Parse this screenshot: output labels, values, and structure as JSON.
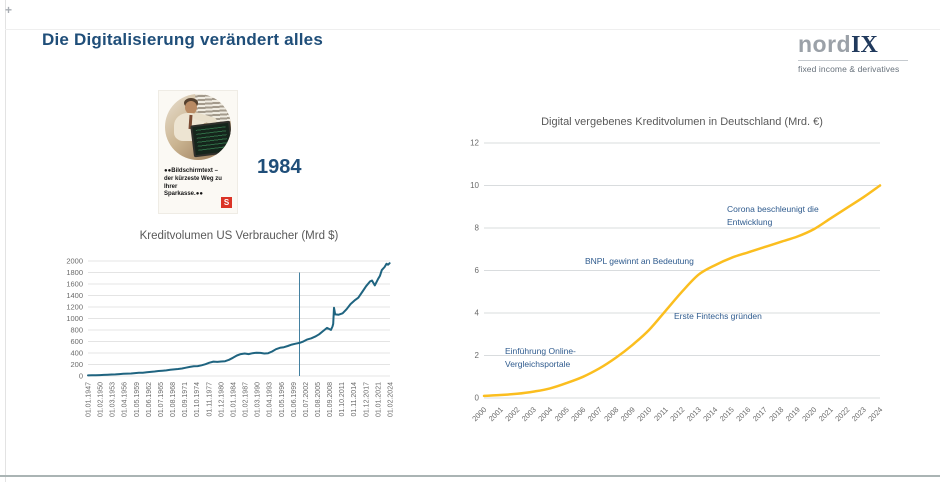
{
  "slide": {
    "title": "Die Digitalisierung verändert alles",
    "crosshair": "+",
    "year_label": "1984",
    "logo": {
      "word_gray": "nord",
      "word_navy": "IX",
      "tagline": "fixed income & derivatives"
    },
    "ad": {
      "caption": "●●Bildschirmtext –\nder kürzeste Weg zu Ihrer\nSparkasse.●●",
      "logo_letter": "S"
    },
    "colors": {
      "title_navy": "#1F4E79",
      "annotation_blue": "#2F5B8E",
      "sparkasse_red": "#DB3326"
    }
  },
  "chart_data": [
    {
      "type": "line",
      "title": "Kreditvolumen US Verbraucher (Mrd $)",
      "xlabel": "",
      "ylabel": "",
      "ylim": [
        0,
        2000
      ],
      "yticks": [
        0,
        200,
        400,
        600,
        800,
        1000,
        1200,
        1400,
        1600,
        1800,
        2000
      ],
      "x_range": [
        1947,
        2024.09
      ],
      "xtick_labels": [
        "01.01.1947",
        "01.02.1950",
        "01.03.1953",
        "01.04.1956",
        "01.05.1959",
        "01.06.1962",
        "01.07.1965",
        "01.08.1968",
        "01.09.1971",
        "01.10.1974",
        "01.11.1977",
        "01.12.1980",
        "01.01.1984",
        "01.02.1987",
        "01.03.1990",
        "01.04.1993",
        "01.05.1996",
        "01.06.1999",
        "01.07.2002",
        "01.08.2005",
        "01.09.2008",
        "01.10.2011",
        "01.11.2014",
        "01.12.2017",
        "01.01.2021",
        "01.02.2024"
      ],
      "grid": true,
      "legend": false,
      "line_color": "#1F6480",
      "grid_color": "#E4E4E4",
      "tick_color": "#6B6B6B",
      "marker_line": {
        "year": 2001,
        "top_value": 1800,
        "color": "#4380A0"
      },
      "series": [
        {
          "name": "Kreditvolumen US Verbraucher",
          "points": [
            [
              1947,
              10
            ],
            [
              1948,
              12
            ],
            [
              1949,
              13
            ],
            [
              1950,
              16
            ],
            [
              1951,
              19
            ],
            [
              1952,
              22
            ],
            [
              1953,
              26
            ],
            [
              1954,
              28
            ],
            [
              1955,
              33
            ],
            [
              1956,
              38
            ],
            [
              1957,
              41
            ],
            [
              1958,
              44
            ],
            [
              1959,
              50
            ],
            [
              1960,
              55
            ],
            [
              1961,
              58
            ],
            [
              1962,
              64
            ],
            [
              1963,
              71
            ],
            [
              1964,
              79
            ],
            [
              1965,
              87
            ],
            [
              1966,
              93
            ],
            [
              1967,
              98
            ],
            [
              1968,
              107
            ],
            [
              1969,
              115
            ],
            [
              1970,
              121
            ],
            [
              1971,
              131
            ],
            [
              1972,
              144
            ],
            [
              1973,
              159
            ],
            [
              1974,
              169
            ],
            [
              1975,
              173
            ],
            [
              1976,
              186
            ],
            [
              1977,
              206
            ],
            [
              1978,
              231
            ],
            [
              1979,
              251
            ],
            [
              1980,
              246
            ],
            [
              1981,
              252
            ],
            [
              1982,
              257
            ],
            [
              1983,
              282
            ],
            [
              1984,
              317
            ],
            [
              1985,
              357
            ],
            [
              1986,
              381
            ],
            [
              1987,
              391
            ],
            [
              1988,
              381
            ],
            [
              1989,
              396
            ],
            [
              1990,
              406
            ],
            [
              1991,
              401
            ],
            [
              1992,
              391
            ],
            [
              1993,
              396
            ],
            [
              1994,
              426
            ],
            [
              1995,
              466
            ],
            [
              1996,
              491
            ],
            [
              1997,
              501
            ],
            [
              1998,
              521
            ],
            [
              1999,
              546
            ],
            [
              2000,
              561
            ],
            [
              2001,
              576
            ],
            [
              2002,
              601
            ],
            [
              2003,
              636
            ],
            [
              2004,
              656
            ],
            [
              2005,
              686
            ],
            [
              2006,
              726
            ],
            [
              2007,
              781
            ],
            [
              2008,
              836
            ],
            [
              2009,
              801
            ],
            [
              2009.4,
              861
            ],
            [
              2009.6,
              906
            ],
            [
              2009.8,
              1186
            ],
            [
              2010.1,
              1071
            ],
            [
              2011,
              1066
            ],
            [
              2012,
              1091
            ],
            [
              2013,
              1161
            ],
            [
              2014,
              1251
            ],
            [
              2015,
              1311
            ],
            [
              2016,
              1361
            ],
            [
              2017,
              1461
            ],
            [
              2018,
              1561
            ],
            [
              2019,
              1646
            ],
            [
              2019.5,
              1661
            ],
            [
              2020.2,
              1576
            ],
            [
              2021,
              1681
            ],
            [
              2021.5,
              1741
            ],
            [
              2022,
              1841
            ],
            [
              2022.7,
              1896
            ],
            [
              2023.2,
              1951
            ],
            [
              2023.6,
              1936
            ],
            [
              2024,
              1961
            ]
          ]
        }
      ]
    },
    {
      "type": "line",
      "title": "Digital vergebenes Kreditvolumen in Deutschland (Mrd. €)",
      "xlabel": "",
      "ylabel": "",
      "ylim": [
        0,
        12
      ],
      "yticks": [
        0,
        2,
        4,
        6,
        8,
        10,
        12
      ],
      "x_range": [
        2000,
        2024
      ],
      "xtick_labels": [
        "2000",
        "2001",
        "2002",
        "2003",
        "2004",
        "2005",
        "2006",
        "2007",
        "2008",
        "2009",
        "2010",
        "2011",
        "2012",
        "2013",
        "2014",
        "2015",
        "2016",
        "2017",
        "2018",
        "2019",
        "2020",
        "2021",
        "2022",
        "2023",
        "2024"
      ],
      "grid": true,
      "legend": false,
      "line_color": "#FBBE1F",
      "grid_color": "#D9DCDE",
      "tick_color": "#6B6B6B",
      "series": [
        {
          "name": "Digital vergebenes Kreditvolumen",
          "points": [
            [
              2000,
              0.1
            ],
            [
              2001,
              0.14
            ],
            [
              2002,
              0.2
            ],
            [
              2003,
              0.3
            ],
            [
              2004,
              0.45
            ],
            [
              2005,
              0.7
            ],
            [
              2006,
              1.0
            ],
            [
              2007,
              1.4
            ],
            [
              2008,
              1.9
            ],
            [
              2009,
              2.5
            ],
            [
              2010,
              3.2
            ],
            [
              2011,
              4.1
            ],
            [
              2012,
              5.0
            ],
            [
              2013,
              5.8
            ],
            [
              2014,
              6.25
            ],
            [
              2015,
              6.6
            ],
            [
              2016,
              6.85
            ],
            [
              2017,
              7.1
            ],
            [
              2018,
              7.35
            ],
            [
              2019,
              7.6
            ],
            [
              2020,
              7.95
            ],
            [
              2021,
              8.45
            ],
            [
              2022,
              8.95
            ],
            [
              2023,
              9.45
            ],
            [
              2024,
              10.0
            ]
          ]
        }
      ],
      "annotations": [
        {
          "text": "Einführung Online-\nVergleichsportale"
        },
        {
          "text": "Erste Fintechs gründen"
        },
        {
          "text": "BNPL gewinnt an Bedeutung"
        },
        {
          "text": "Corona beschleunigt die\nEntwicklung"
        }
      ]
    }
  ]
}
